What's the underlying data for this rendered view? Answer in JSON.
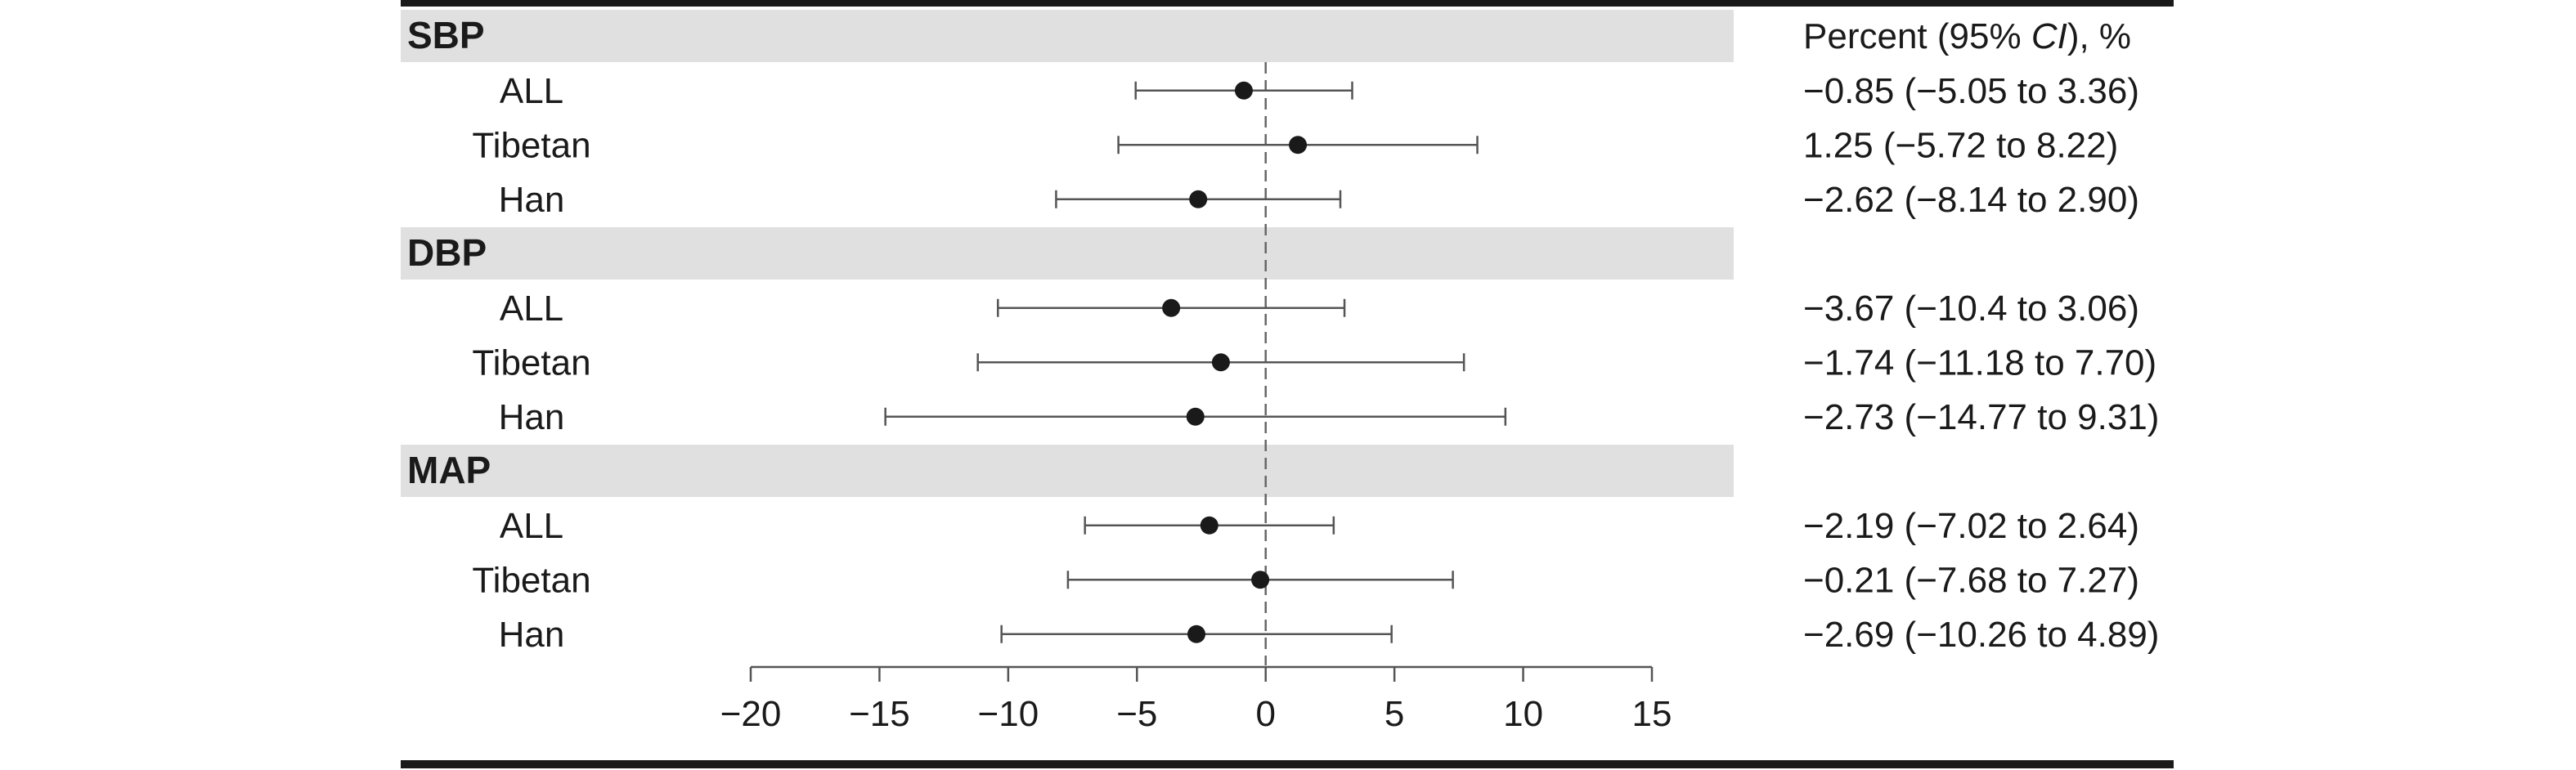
{
  "chart_data": {
    "type": "forest",
    "header": "Percent (95% ",
    "header_ci": "CI",
    "header_end": "), %",
    "groups": [
      {
        "name": "SBP",
        "rows": [
          {
            "label": "ALL",
            "estimate": -0.85,
            "lower": -5.05,
            "upper": 3.36,
            "ci_text": "−0.85 (−5.05 to 3.36)"
          },
          {
            "label": "Tibetan",
            "estimate": 1.25,
            "lower": -5.72,
            "upper": 8.22,
            "ci_text": "1.25 (−5.72  to 8.22)"
          },
          {
            "label": "Han",
            "estimate": -2.62,
            "lower": -8.14,
            "upper": 2.9,
            "ci_text": "−2.62 (−8.14 to 2.90)"
          }
        ]
      },
      {
        "name": "DBP",
        "rows": [
          {
            "label": "ALL",
            "estimate": -3.67,
            "lower": -10.4,
            "upper": 3.06,
            "ci_text": "−3.67 (−10.4 to 3.06)"
          },
          {
            "label": "Tibetan",
            "estimate": -1.74,
            "lower": -11.18,
            "upper": 7.7,
            "ci_text": "−1.74 (−11.18 to 7.70)"
          },
          {
            "label": "Han",
            "estimate": -2.73,
            "lower": -14.77,
            "upper": 9.31,
            "ci_text": "−2.73 (−14.77 to 9.31)"
          }
        ]
      },
      {
        "name": "MAP",
        "rows": [
          {
            "label": "ALL",
            "estimate": -2.19,
            "lower": -7.02,
            "upper": 2.64,
            "ci_text": "−2.19 (−7.02 to 2.64)"
          },
          {
            "label": "Tibetan",
            "estimate": -0.21,
            "lower": -7.68,
            "upper": 7.27,
            "ci_text": "−0.21 (−7.68 to 7.27)"
          },
          {
            "label": "Han",
            "estimate": -2.69,
            "lower": -10.26,
            "upper": 4.89,
            "ci_text": "−2.69 (−10.26 to 4.89)"
          }
        ]
      }
    ],
    "xlim": [
      -20,
      15
    ],
    "xticks": [
      -20,
      -15,
      -10,
      -5,
      0,
      5,
      10,
      15
    ],
    "xtick_labels": [
      "−20",
      "−15",
      "−10",
      "−5",
      "0",
      "5",
      "10",
      "15"
    ],
    "reference_line": 0,
    "colors": {
      "group_band": "#e0e0e0",
      "ink": "#1a1a1a",
      "ci_line": "#555555",
      "reference": "#666666",
      "rule": "#1a1a1a"
    }
  }
}
